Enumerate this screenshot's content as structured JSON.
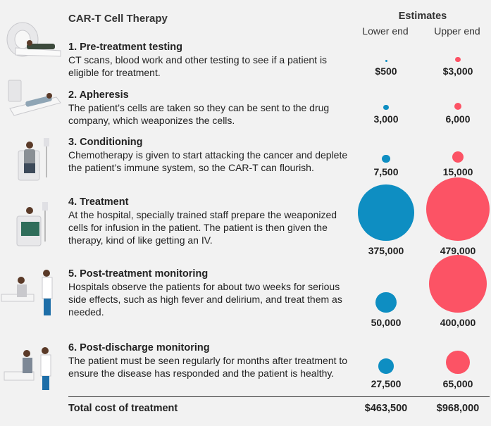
{
  "chart_data": {
    "type": "bubble-table",
    "title": "CAR-T Cell Therapy",
    "estimates_header": "Estimates",
    "columns": [
      {
        "label": "Lower end",
        "color": "#0e8ec2"
      },
      {
        "label": "Upper end",
        "color": "#fc5365"
      }
    ],
    "steps": [
      {
        "title": "1. Pre-treatment testing",
        "description": "CT scans, blood work and other testing to see if a patient is eligible for treatment.",
        "lower": 500,
        "upper": 3000,
        "lower_label": "$500",
        "upper_label": "$3,000"
      },
      {
        "title": "2. Apheresis",
        "description": "The patient’s cells are taken so they can be sent to the drug company, which weaponizes the cells.",
        "lower": 3000,
        "upper": 6000,
        "lower_label": "3,000",
        "upper_label": "6,000"
      },
      {
        "title": "3. Conditioning",
        "description": "Chemotherapy is given to start attacking the cancer and deplete the patient’s immune system, so the CAR-T can flourish.",
        "lower": 7500,
        "upper": 15000,
        "lower_label": "7,500",
        "upper_label": "15,000"
      },
      {
        "title": "4. Treatment",
        "description": "At the hospital, specially trained staff prepare the weaponized cells for infusion in the patient. The patient is then given the therapy, kind of like getting an IV.",
        "lower": 375000,
        "upper": 479000,
        "lower_label": "375,000",
        "upper_label": "479,000"
      },
      {
        "title": "5. Post-treatment monitoring",
        "description": "Hospitals observe the patients for about two weeks for serious side effects, such as high fever and delirium, and treat them as needed.",
        "lower": 50000,
        "upper": 400000,
        "lower_label": "50,000",
        "upper_label": "400,000"
      },
      {
        "title": "6. Post-discharge monitoring",
        "description": "The patient must be seen regularly for months after treatment to ensure the disease has responded and the patient is healthy.",
        "lower": 27500,
        "upper": 65000,
        "lower_label": "27,500",
        "upper_label": "65,000"
      }
    ],
    "total": {
      "label": "Total cost of treatment",
      "lower": 463500,
      "upper": 968000,
      "lower_label": "$463,500",
      "upper_label": "$968,000"
    }
  },
  "colors": {
    "lower": "#0e8ec2",
    "upper": "#fc5365"
  }
}
